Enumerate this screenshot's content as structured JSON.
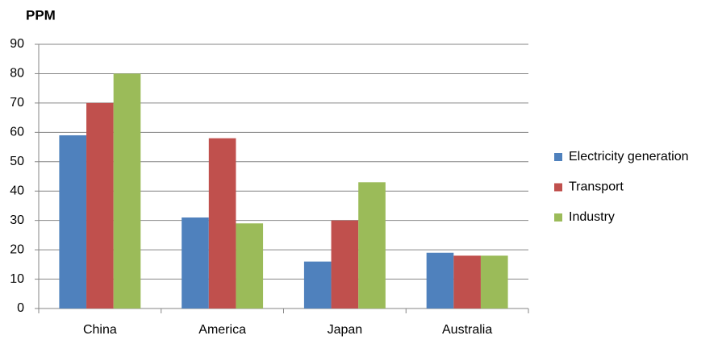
{
  "chart_data": {
    "type": "bar",
    "ylabel": "PPM",
    "categories": [
      "China",
      "America",
      "Japan",
      "Australia"
    ],
    "series": [
      {
        "name": "Electricity generation",
        "color": "#4f81bd",
        "values": [
          59,
          31,
          16,
          19
        ]
      },
      {
        "name": "Transport",
        "color": "#c0504d",
        "values": [
          70,
          58,
          30,
          18
        ]
      },
      {
        "name": "Industry",
        "color": "#9bbb59",
        "values": [
          80,
          29,
          43,
          18
        ]
      }
    ],
    "ylim": [
      0,
      90
    ],
    "yticks": [
      0,
      10,
      20,
      30,
      40,
      50,
      60,
      70,
      80,
      90
    ],
    "grid": true,
    "legend": "right"
  }
}
